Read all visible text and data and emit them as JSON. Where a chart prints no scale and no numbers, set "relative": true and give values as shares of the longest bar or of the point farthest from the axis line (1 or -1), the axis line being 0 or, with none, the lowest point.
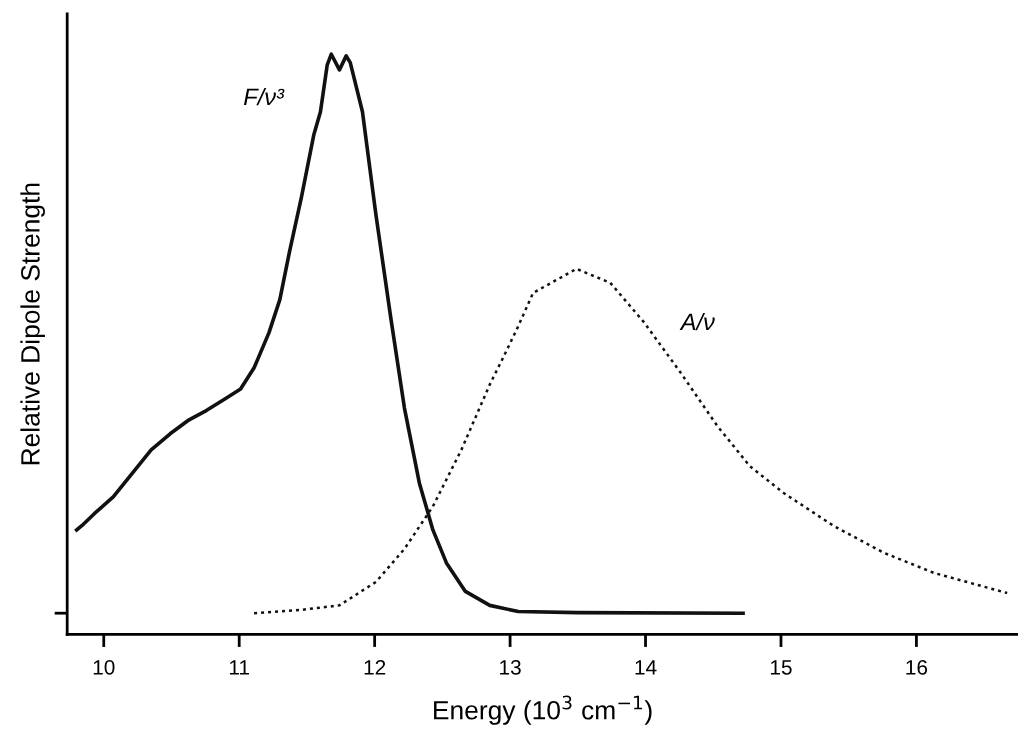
{
  "chart_data": {
    "type": "line",
    "relative": true,
    "xlabel": "Energy (10$^{3}$ cm$^{−1}$)",
    "ylabel": "Relative Dipole Strength",
    "xlim": [
      9.73,
      16.75
    ],
    "xticks": [
      10,
      11,
      12,
      13,
      14,
      15,
      16
    ],
    "grid": false,
    "legend": false,
    "marker": "none",
    "series": [
      {
        "name": "F/ν³",
        "color": "#111111",
        "line_style": "solid",
        "x": [
          9.8,
          9.84,
          9.93,
          10.07,
          10.21,
          10.35,
          10.49,
          10.63,
          10.76,
          10.9,
          11.01,
          11.11,
          11.22,
          11.3,
          11.37,
          11.46,
          11.55,
          11.6,
          11.65,
          11.68,
          11.74,
          11.79,
          11.82,
          11.91,
          12.01,
          12.12,
          12.22,
          12.33,
          12.43,
          12.53,
          12.67,
          12.85,
          13.06,
          13.5,
          14.72
        ],
        "values": [
          0.149,
          0.157,
          0.178,
          0.208,
          0.25,
          0.292,
          0.321,
          0.346,
          0.363,
          0.384,
          0.401,
          0.439,
          0.502,
          0.561,
          0.645,
          0.745,
          0.855,
          0.897,
          0.981,
          1.0,
          0.972,
          0.997,
          0.985,
          0.897,
          0.712,
          0.527,
          0.367,
          0.233,
          0.149,
          0.09,
          0.039,
          0.014,
          0.003,
          0.001,
          0.0
        ]
      },
      {
        "name": "A/ν",
        "color": "#111111",
        "line_style": "dotted",
        "x": [
          11.11,
          11.46,
          11.74,
          12.01,
          12.22,
          12.43,
          12.64,
          12.85,
          12.93,
          13.05,
          13.17,
          13.49,
          13.74,
          13.99,
          14.26,
          14.53,
          14.77,
          15.02,
          15.39,
          15.76,
          16.13,
          16.67
        ],
        "values": [
          0.0,
          0.006,
          0.014,
          0.056,
          0.115,
          0.191,
          0.292,
          0.409,
          0.448,
          0.508,
          0.573,
          0.616,
          0.591,
          0.52,
          0.43,
          0.335,
          0.263,
          0.215,
          0.156,
          0.108,
          0.072,
          0.036
        ]
      }
    ]
  }
}
